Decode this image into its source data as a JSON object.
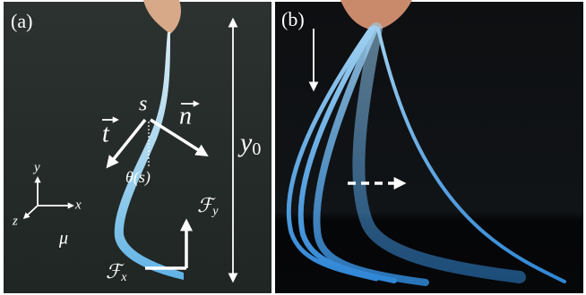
{
  "panels": [
    {
      "label": "(a)",
      "annotations": {
        "arc_length": "s",
        "tangent": "t",
        "normal": "n",
        "angle": "θ(s)",
        "height": {
          "symbol": "y",
          "subscript": "0"
        },
        "axes": {
          "x": "x",
          "y": "y",
          "z": "z"
        },
        "friction": "μ",
        "force_y": {
          "symbol": "ℱ",
          "subscript": "y"
        },
        "force_x": {
          "symbol": "ℱ",
          "subscript": "x"
        }
      }
    },
    {
      "label": "(b)"
    }
  ]
}
